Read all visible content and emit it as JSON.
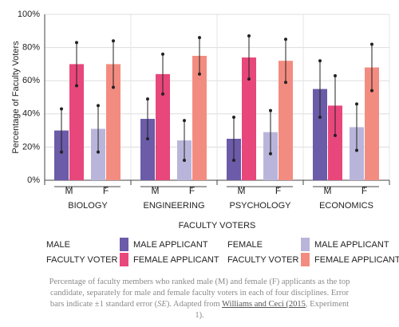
{
  "chart_data": {
    "type": "bar",
    "ylabel": "Percentage of Faculty Voters",
    "xlabel": "FACULTY VOTERS",
    "ylim": [
      0,
      100
    ],
    "yticks": [
      {
        "value": 0,
        "label": "0%"
      },
      {
        "value": 20,
        "label": "20%"
      },
      {
        "value": 40,
        "label": "40%"
      },
      {
        "value": 60,
        "label": "60%"
      },
      {
        "value": 80,
        "label": "80%"
      },
      {
        "value": 100,
        "label": "100%"
      }
    ],
    "grid": true,
    "categories": [
      "BIOLOGY",
      "ENGINEERING",
      "PSYCHOLOGY",
      "ECONOMICS"
    ],
    "voter_groups": [
      {
        "label": "M",
        "legend": [
          "MALE",
          "FACULTY VOTER"
        ],
        "series": [
          {
            "name": "MALE APPLICANT",
            "color": "#6b5ba8",
            "values": [
              30,
              37,
              25,
              55
            ],
            "errors": [
              13,
              12,
              13,
              17
            ]
          },
          {
            "name": "FEMALE APPLICANT",
            "color": "#e8477c",
            "values": [
              70,
              64,
              74,
              45
            ],
            "errors": [
              13,
              12,
              13,
              18
            ]
          }
        ]
      },
      {
        "label": "F",
        "legend": [
          "FEMALE",
          "FACULTY VOTER"
        ],
        "series": [
          {
            "name": "MALE APPLICANT",
            "color": "#b9b5da",
            "values": [
              31,
              24,
              29,
              32
            ],
            "errors": [
              14,
              12,
              13,
              14
            ]
          },
          {
            "name": "FEMALE APPLICANT",
            "color": "#f38c80",
            "values": [
              70,
              75,
              72,
              68
            ],
            "errors": [
              14,
              11,
              13,
              14
            ]
          }
        ]
      }
    ]
  },
  "caption": [
    "Percentage of faculty members who ranked male (M) and female (F) applicants as the top candidate, separately for male and female faculty voters in each of four disciplines. Error bars indicate ±1 standard error (",
    "SE",
    "). Adapted from ",
    "Williams and Ceci (2015",
    ", Experiment 1)."
  ]
}
